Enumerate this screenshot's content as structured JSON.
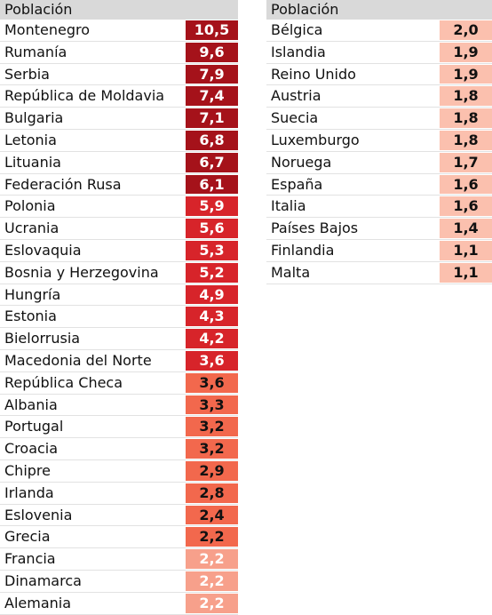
{
  "chart_data": {
    "type": "table",
    "colors": {
      "darkest": "#a5121a",
      "dark": "#d7242a",
      "medium": "#f2684d",
      "light": "#f7a08b",
      "lightest": "#fbc0ae",
      "header_bg": "#d9d9d9",
      "text_on_dark": "#ffffff",
      "text_on_light": "#111111"
    },
    "tables": [
      {
        "header": "Población",
        "rows": [
          {
            "country": "Montenegro",
            "label": "10,5",
            "value": 10.5,
            "shade": "darkest"
          },
          {
            "country": "Rumanía",
            "label": "9,6",
            "value": 9.6,
            "shade": "darkest"
          },
          {
            "country": "Serbia",
            "label": "7,9",
            "value": 7.9,
            "shade": "darkest"
          },
          {
            "country": "República de Moldavia",
            "label": "7,4",
            "value": 7.4,
            "shade": "darkest"
          },
          {
            "country": "Bulgaria",
            "label": "7,1",
            "value": 7.1,
            "shade": "darkest"
          },
          {
            "country": "Letonia",
            "label": "6,8",
            "value": 6.8,
            "shade": "darkest"
          },
          {
            "country": "Lituania",
            "label": "6,7",
            "value": 6.7,
            "shade": "darkest"
          },
          {
            "country": "Federación Rusa",
            "label": "6,1",
            "value": 6.1,
            "shade": "darkest"
          },
          {
            "country": "Polonia",
            "label": "5,9",
            "value": 5.9,
            "shade": "dark"
          },
          {
            "country": "Ucrania",
            "label": "5,6",
            "value": 5.6,
            "shade": "dark"
          },
          {
            "country": "Eslovaquia",
            "label": "5,3",
            "value": 5.3,
            "shade": "dark"
          },
          {
            "country": "Bosnia y Herzegovina",
            "label": "5,2",
            "value": 5.2,
            "shade": "dark"
          },
          {
            "country": "Hungría",
            "label": "4,9",
            "value": 4.9,
            "shade": "dark"
          },
          {
            "country": "Estonia",
            "label": "4,3",
            "value": 4.3,
            "shade": "dark"
          },
          {
            "country": "Bielorrusia",
            "label": "4,2",
            "value": 4.2,
            "shade": "dark"
          },
          {
            "country": "Macedonia del Norte",
            "label": "3,6",
            "value": 3.6,
            "shade": "dark"
          },
          {
            "country": "República Checa",
            "label": "3,6",
            "value": 3.6,
            "shade": "medium"
          },
          {
            "country": "Albania",
            "label": "3,3",
            "value": 3.3,
            "shade": "medium"
          },
          {
            "country": "Portugal",
            "label": "3,2",
            "value": 3.2,
            "shade": "medium"
          },
          {
            "country": "Croacia",
            "label": "3,2",
            "value": 3.2,
            "shade": "medium"
          },
          {
            "country": "Chipre",
            "label": "2,9",
            "value": 2.9,
            "shade": "medium"
          },
          {
            "country": "Irlanda",
            "label": "2,8",
            "value": 2.8,
            "shade": "medium"
          },
          {
            "country": "Eslovenia",
            "label": "2,4",
            "value": 2.4,
            "shade": "medium"
          },
          {
            "country": "Grecia",
            "label": "2,2",
            "value": 2.2,
            "shade": "medium"
          },
          {
            "country": "Francia",
            "label": "2,2",
            "value": 2.2,
            "shade": "light"
          },
          {
            "country": "Dinamarca",
            "label": "2,2",
            "value": 2.2,
            "shade": "light"
          },
          {
            "country": "Alemania",
            "label": "2,2",
            "value": 2.2,
            "shade": "light"
          }
        ]
      },
      {
        "header": "Población",
        "rows": [
          {
            "country": "Bélgica",
            "label": "2,0",
            "value": 2.0,
            "shade": "lightest"
          },
          {
            "country": "Islandia",
            "label": "1,9",
            "value": 1.9,
            "shade": "lightest"
          },
          {
            "country": "Reino Unido",
            "label": "1,9",
            "value": 1.9,
            "shade": "lightest"
          },
          {
            "country": "Austria",
            "label": "1,8",
            "value": 1.8,
            "shade": "lightest"
          },
          {
            "country": "Suecia",
            "label": "1,8",
            "value": 1.8,
            "shade": "lightest"
          },
          {
            "country": "Luxemburgo",
            "label": "1,8",
            "value": 1.8,
            "shade": "lightest"
          },
          {
            "country": "Noruega",
            "label": "1,7",
            "value": 1.7,
            "shade": "lightest"
          },
          {
            "country": "España",
            "label": "1,6",
            "value": 1.6,
            "shade": "lightest"
          },
          {
            "country": "Italia",
            "label": "1,6",
            "value": 1.6,
            "shade": "lightest"
          },
          {
            "country": "Países Bajos",
            "label": "1,4",
            "value": 1.4,
            "shade": "lightest"
          },
          {
            "country": "Finlandia",
            "label": "1,1",
            "value": 1.1,
            "shade": "lightest"
          },
          {
            "country": "Malta",
            "label": "1,1",
            "value": 1.1,
            "shade": "lightest"
          }
        ]
      }
    ]
  }
}
